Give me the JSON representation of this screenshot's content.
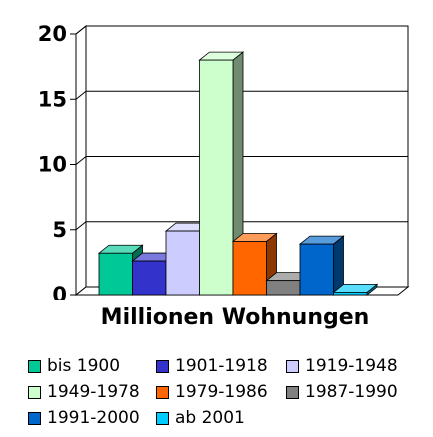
{
  "chart_data": {
    "type": "bar",
    "xlabel": "Millionen Wohnungen",
    "ylim": [
      0,
      20
    ],
    "yticks": [
      0,
      5,
      10,
      15,
      20
    ],
    "grid": true,
    "legend_position": "bottom",
    "series": [
      {
        "name": "bis 1900",
        "value": 3.2,
        "color": "#00c896"
      },
      {
        "name": "1901-1918",
        "value": 2.6,
        "color": "#3333cc"
      },
      {
        "name": "1919-1948",
        "value": 4.9,
        "color": "#ccccff"
      },
      {
        "name": "1949-1978",
        "value": 18.0,
        "color": "#ccffcc"
      },
      {
        "name": "1979-1986",
        "value": 4.1,
        "color": "#ff6600"
      },
      {
        "name": "1987-1990",
        "value": 1.1,
        "color": "#808080"
      },
      {
        "name": "1991-2000",
        "value": 3.9,
        "color": "#0066cc"
      },
      {
        "name": "ab 2001",
        "value": 0.2,
        "color": "#00ccff"
      }
    ]
  }
}
